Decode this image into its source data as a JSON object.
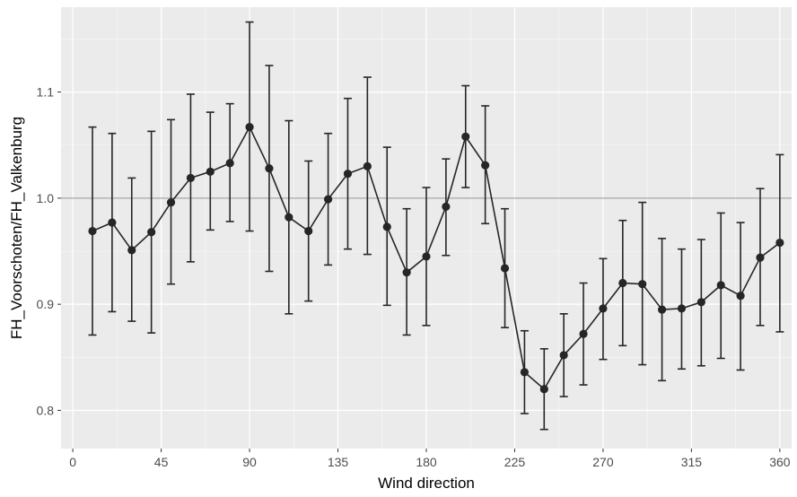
{
  "chart_data": {
    "type": "line",
    "xlabel": "Wind direction",
    "ylabel": "FH_Voorschoten/FH_Valkenburg",
    "xlim": [
      -6,
      366
    ],
    "ylim": [
      0.764,
      1.18
    ],
    "x_ticks": [
      0,
      45,
      90,
      135,
      180,
      225,
      270,
      315,
      360
    ],
    "y_ticks": [
      0.8,
      0.9,
      1.0,
      1.1
    ],
    "y_tick_labels": [
      "0.8",
      "0.9",
      "1.0",
      "1.1"
    ],
    "reference_line": 1.0,
    "grid": true,
    "colors": {
      "panel": "#ebebeb",
      "grid_major": "#ffffff",
      "series": "#262626",
      "reference": "#a6a6a6",
      "axis_text": "#4d4d4d",
      "title_text": "#000000"
    },
    "series": [
      {
        "points": [
          {
            "x": 10,
            "y": 0.969,
            "lo": 0.871,
            "hi": 1.067
          },
          {
            "x": 20,
            "y": 0.977,
            "lo": 0.893,
            "hi": 1.061
          },
          {
            "x": 30,
            "y": 0.951,
            "lo": 0.884,
            "hi": 1.019
          },
          {
            "x": 40,
            "y": 0.968,
            "lo": 0.873,
            "hi": 1.063
          },
          {
            "x": 50,
            "y": 0.996,
            "lo": 0.919,
            "hi": 1.074
          },
          {
            "x": 60,
            "y": 1.019,
            "lo": 0.94,
            "hi": 1.098
          },
          {
            "x": 70,
            "y": 1.025,
            "lo": 0.97,
            "hi": 1.081
          },
          {
            "x": 80,
            "y": 1.033,
            "lo": 0.978,
            "hi": 1.089
          },
          {
            "x": 90,
            "y": 1.067,
            "lo": 0.969,
            "hi": 1.166
          },
          {
            "x": 100,
            "y": 1.028,
            "lo": 0.931,
            "hi": 1.125
          },
          {
            "x": 110,
            "y": 0.982,
            "lo": 0.891,
            "hi": 1.073
          },
          {
            "x": 120,
            "y": 0.969,
            "lo": 0.903,
            "hi": 1.035
          },
          {
            "x": 130,
            "y": 0.999,
            "lo": 0.937,
            "hi": 1.061
          },
          {
            "x": 140,
            "y": 1.023,
            "lo": 0.952,
            "hi": 1.094
          },
          {
            "x": 150,
            "y": 1.03,
            "lo": 0.947,
            "hi": 1.114
          },
          {
            "x": 160,
            "y": 0.973,
            "lo": 0.899,
            "hi": 1.048
          },
          {
            "x": 170,
            "y": 0.93,
            "lo": 0.871,
            "hi": 0.99
          },
          {
            "x": 180,
            "y": 0.945,
            "lo": 0.88,
            "hi": 1.01
          },
          {
            "x": 190,
            "y": 0.992,
            "lo": 0.946,
            "hi": 1.037
          },
          {
            "x": 200,
            "y": 1.058,
            "lo": 1.01,
            "hi": 1.106
          },
          {
            "x": 210,
            "y": 1.031,
            "lo": 0.976,
            "hi": 1.087
          },
          {
            "x": 220,
            "y": 0.934,
            "lo": 0.878,
            "hi": 0.99
          },
          {
            "x": 230,
            "y": 0.836,
            "lo": 0.797,
            "hi": 0.875
          },
          {
            "x": 240,
            "y": 0.82,
            "lo": 0.782,
            "hi": 0.858
          },
          {
            "x": 250,
            "y": 0.852,
            "lo": 0.813,
            "hi": 0.891
          },
          {
            "x": 260,
            "y": 0.872,
            "lo": 0.824,
            "hi": 0.92
          },
          {
            "x": 270,
            "y": 0.896,
            "lo": 0.848,
            "hi": 0.943
          },
          {
            "x": 280,
            "y": 0.92,
            "lo": 0.861,
            "hi": 0.979
          },
          {
            "x": 290,
            "y": 0.919,
            "lo": 0.843,
            "hi": 0.996
          },
          {
            "x": 300,
            "y": 0.895,
            "lo": 0.828,
            "hi": 0.962
          },
          {
            "x": 310,
            "y": 0.896,
            "lo": 0.839,
            "hi": 0.952
          },
          {
            "x": 320,
            "y": 0.902,
            "lo": 0.842,
            "hi": 0.961
          },
          {
            "x": 330,
            "y": 0.918,
            "lo": 0.849,
            "hi": 0.986
          },
          {
            "x": 340,
            "y": 0.908,
            "lo": 0.838,
            "hi": 0.977
          },
          {
            "x": 350,
            "y": 0.944,
            "lo": 0.88,
            "hi": 1.009
          },
          {
            "x": 360,
            "y": 0.958,
            "lo": 0.874,
            "hi": 1.041
          }
        ]
      }
    ]
  }
}
